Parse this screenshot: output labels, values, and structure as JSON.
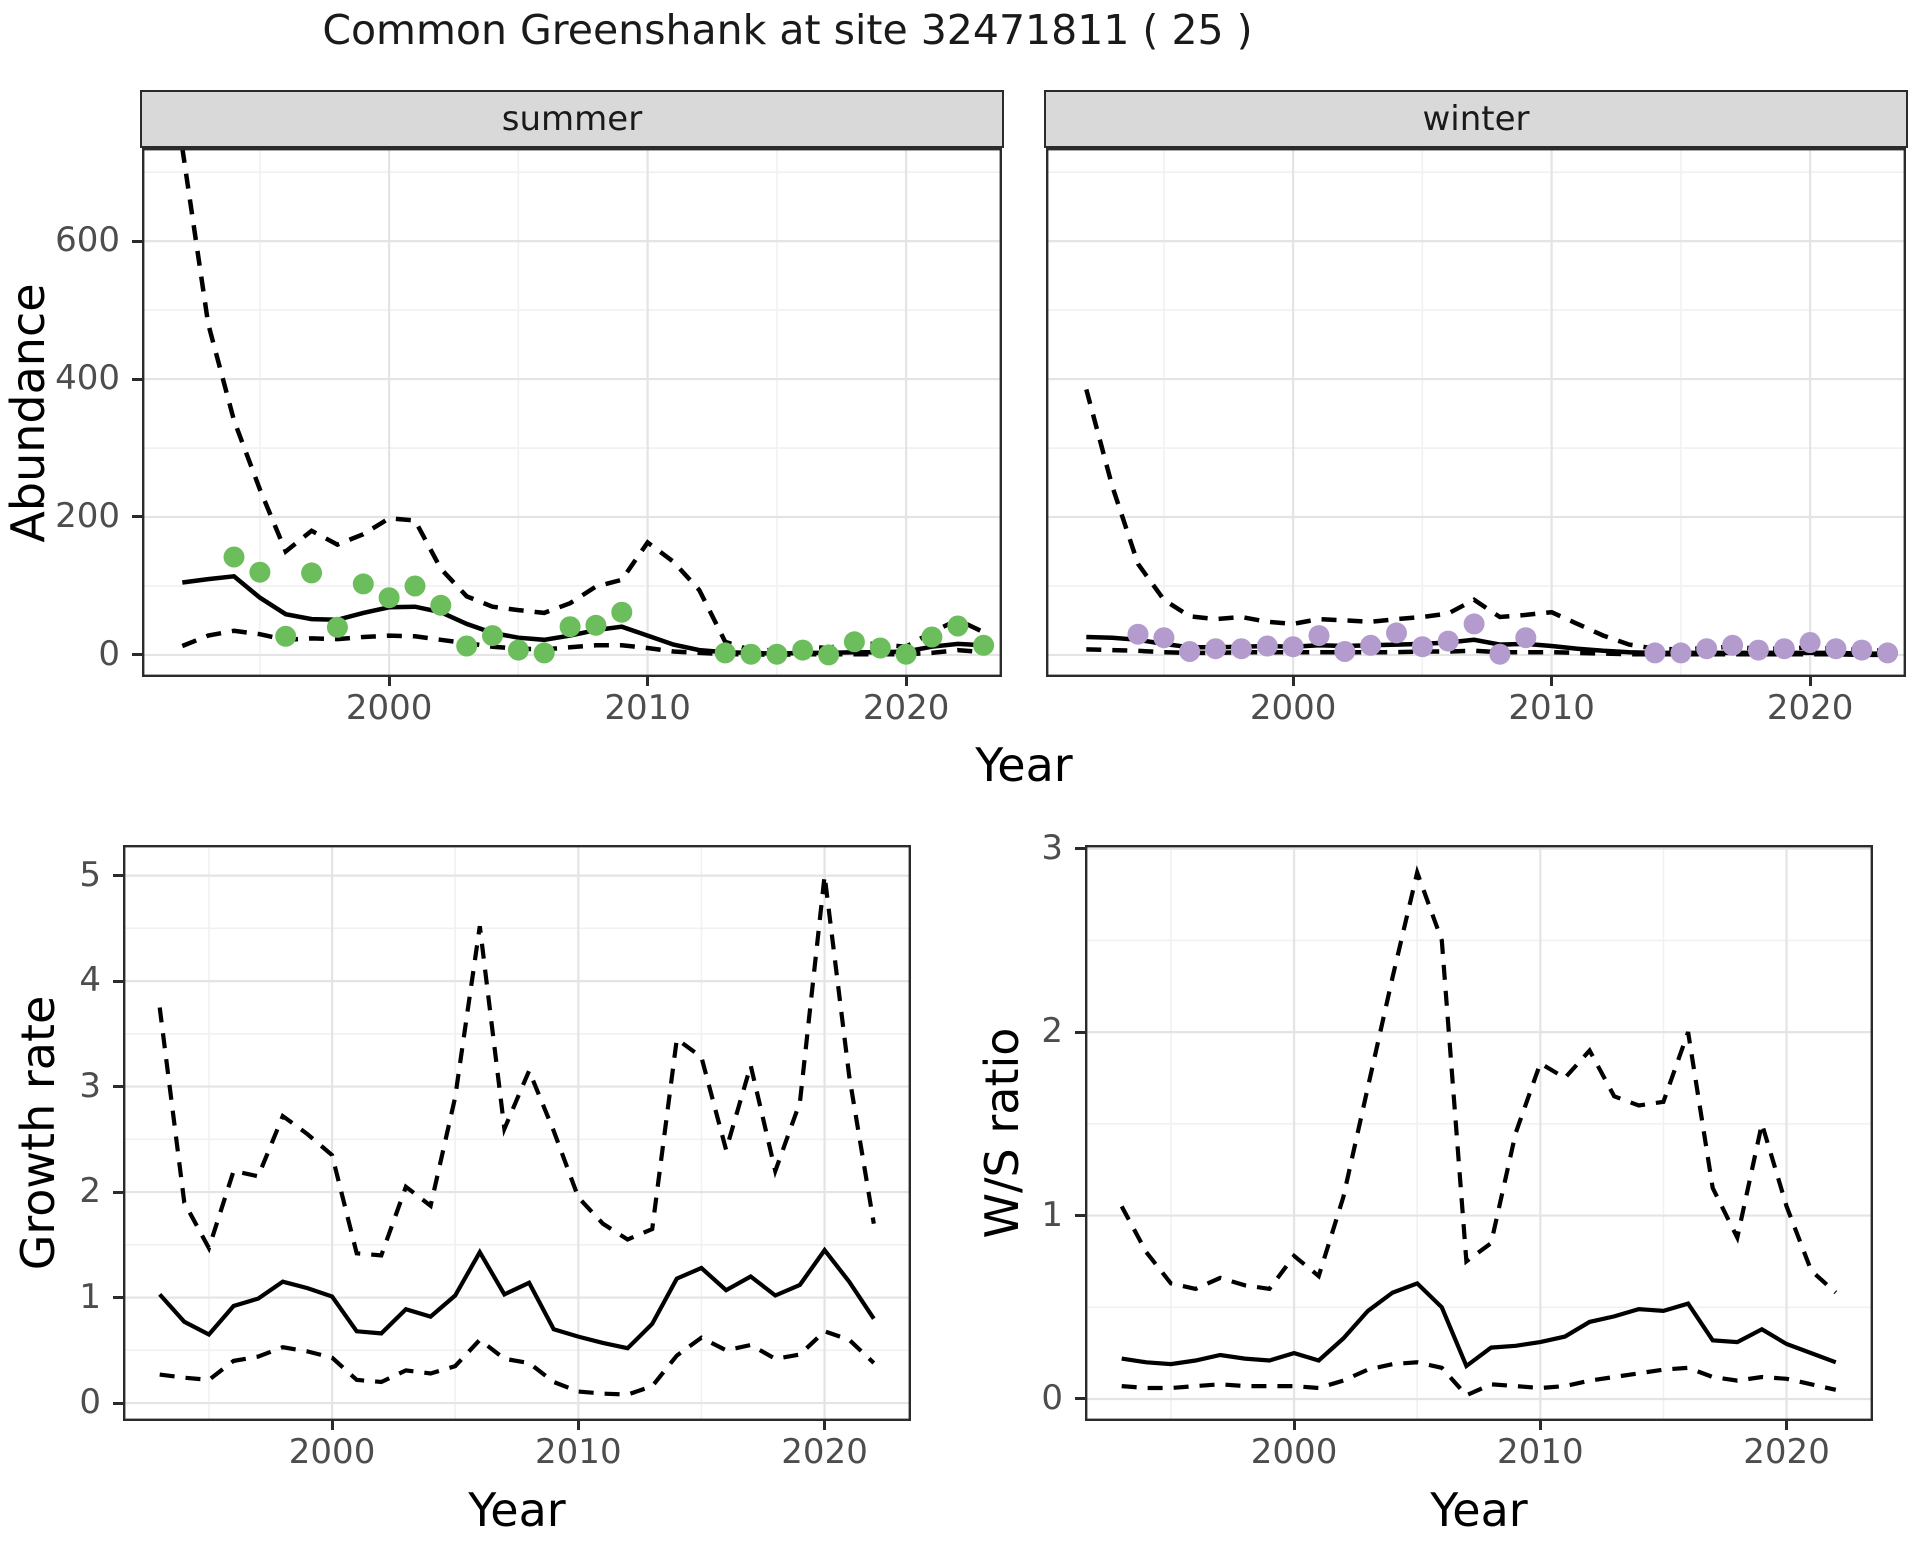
{
  "title": "Common Greenshank at site 32471811 ( 25 )",
  "top_figure": {
    "ylabel": "Abundance",
    "xlabel": "Year",
    "facets": [
      "summer",
      "winter"
    ],
    "strip_bg": "#d9d9d9"
  },
  "bottom_left": {
    "ylabel": "Growth rate",
    "xlabel": "Year"
  },
  "bottom_right": {
    "ylabel": "W/S ratio",
    "xlabel": "Year"
  },
  "colors": {
    "summer_points": "#6cbe5c",
    "winter_points": "#b49bcd",
    "line": "#000000",
    "grid_major": "#e4e4e4",
    "grid_minor": "#f1f1f1"
  },
  "chart_data": [
    {
      "id": "abundance_summer",
      "type": "line",
      "facet_label": "summer",
      "xlabel": "Year",
      "ylabel": "Abundance",
      "xlim": [
        1990.44,
        2023.71
      ],
      "ylim": [
        -32,
        735
      ],
      "xticks": [
        2000,
        2010,
        2020
      ],
      "yticks": [
        0,
        200,
        400,
        600
      ],
      "xminor": [
        1995,
        2005,
        2015
      ],
      "yminor": [
        100,
        300,
        500,
        700
      ],
      "years": [
        1992,
        1993,
        1994,
        1995,
        1996,
        1997,
        1998,
        1999,
        2000,
        2001,
        2002,
        2003,
        2004,
        2005,
        2006,
        2007,
        2008,
        2009,
        2010,
        2011,
        2012,
        2013,
        2014,
        2015,
        2016,
        2017,
        2018,
        2019,
        2020,
        2021,
        2022,
        2023
      ],
      "series": [
        {
          "name": "mean",
          "linetype": "solid",
          "values": [
            105,
            110,
            114,
            83,
            59,
            52,
            51,
            61,
            69,
            70,
            62,
            45,
            32,
            25,
            22,
            28,
            36,
            41,
            28,
            15,
            7,
            4,
            3,
            2,
            3,
            3,
            4,
            4,
            5,
            12,
            16,
            14
          ]
        },
        {
          "name": "upper_ci",
          "linetype": "dashed",
          "values": [
            735,
            480,
            340,
            240,
            150,
            180,
            160,
            175,
            198,
            195,
            125,
            85,
            70,
            65,
            61,
            75,
            99,
            109,
            163,
            135,
            94,
            19,
            7,
            7,
            12,
            10,
            18,
            15,
            12,
            33,
            51,
            33
          ]
        },
        {
          "name": "lower_ci",
          "linetype": "dashed",
          "values": [
            13,
            28,
            35,
            30,
            22,
            24,
            23,
            26,
            28,
            27,
            22,
            17,
            12,
            9,
            8,
            11,
            14,
            14,
            10,
            5,
            3,
            1,
            1,
            0,
            1,
            1,
            1,
            1,
            1,
            3,
            7,
            4
          ]
        }
      ],
      "points": {
        "name": "observed_counts_summer",
        "color": "#6cbe5c",
        "years": [
          1994,
          1995,
          1996,
          1997,
          1998,
          1999,
          2000,
          2001,
          2002,
          2003,
          2004,
          2005,
          2006,
          2007,
          2008,
          2009,
          2013,
          2014,
          2015,
          2016,
          2017,
          2018,
          2019,
          2020,
          2021,
          2022,
          2023
        ],
        "values": [
          142,
          120,
          27,
          119,
          40,
          103,
          83,
          100,
          72,
          13,
          28,
          7,
          3,
          41,
          43,
          62,
          3,
          1,
          1,
          7,
          0,
          19,
          10,
          1,
          26,
          42,
          14
        ]
      }
    },
    {
      "id": "abundance_winter",
      "type": "line",
      "facet_label": "winter",
      "xlabel": "Year",
      "ylabel": "Abundance",
      "xlim": [
        1990.44,
        2023.71
      ],
      "ylim": [
        -32,
        735
      ],
      "xticks": [
        2000,
        2010,
        2020
      ],
      "yticks": [
        0,
        200,
        400,
        600
      ],
      "xminor": [
        1995,
        2005,
        2015
      ],
      "yminor": [
        100,
        300,
        500,
        700
      ],
      "years": [
        1992,
        1993,
        1994,
        1995,
        1996,
        1997,
        1998,
        1999,
        2000,
        2001,
        2002,
        2003,
        2004,
        2005,
        2006,
        2007,
        2008,
        2009,
        2010,
        2011,
        2012,
        2013,
        2014,
        2015,
        2016,
        2017,
        2018,
        2019,
        2020,
        2021,
        2022,
        2023
      ],
      "series": [
        {
          "name": "mean",
          "linetype": "solid",
          "values": [
            26,
            25,
            22,
            16,
            11,
            11,
            12,
            13,
            12,
            14,
            13,
            14,
            15,
            16,
            18,
            22,
            15,
            16,
            13,
            9,
            6,
            4,
            3,
            3,
            3,
            3,
            3,
            3,
            3,
            3,
            2,
            2
          ]
        },
        {
          "name": "upper_ci",
          "linetype": "dashed",
          "values": [
            385,
            245,
            132,
            80,
            56,
            52,
            55,
            48,
            45,
            52,
            50,
            48,
            52,
            55,
            60,
            80,
            55,
            58,
            62,
            45,
            28,
            15,
            9,
            8,
            10,
            12,
            9,
            9,
            11,
            9,
            7,
            6
          ]
        },
        {
          "name": "lower_ci",
          "linetype": "dashed",
          "values": [
            8,
            7,
            6,
            4,
            3,
            3,
            4,
            4,
            4,
            4,
            4,
            4,
            4,
            5,
            5,
            6,
            4,
            4,
            4,
            3,
            2,
            1,
            1,
            1,
            1,
            1,
            1,
            1,
            1,
            1,
            0,
            0
          ]
        }
      ],
      "points": {
        "name": "observed_counts_winter",
        "color": "#b49bcd",
        "years": [
          1994,
          1995,
          1996,
          1997,
          1998,
          1999,
          2000,
          2001,
          2002,
          2003,
          2004,
          2005,
          2006,
          2007,
          2008,
          2009,
          2014,
          2015,
          2016,
          2017,
          2018,
          2019,
          2020,
          2021,
          2022,
          2023
        ],
        "values": [
          30,
          25,
          5,
          9,
          9,
          13,
          12,
          28,
          5,
          14,
          32,
          12,
          20,
          45,
          1,
          25,
          3,
          3,
          9,
          14,
          7,
          9,
          18,
          9,
          7,
          3
        ]
      }
    },
    {
      "id": "growth_rate",
      "type": "line",
      "xlabel": "Year",
      "ylabel": "Growth rate",
      "xlim": [
        1991.51,
        2023.51
      ],
      "ylim": [
        -0.17,
        5.29
      ],
      "xticks": [
        2000,
        2010,
        2020
      ],
      "yticks": [
        0,
        1,
        2,
        3,
        4,
        5
      ],
      "xminor": [
        1995,
        2005,
        2015
      ],
      "yminor": [
        0.5,
        1.5,
        2.5,
        3.5,
        4.5
      ],
      "years": [
        1993,
        1994,
        1995,
        1996,
        1997,
        1998,
        1999,
        2000,
        2001,
        2002,
        2003,
        2004,
        2005,
        2006,
        2007,
        2008,
        2009,
        2010,
        2011,
        2012,
        2013,
        2014,
        2015,
        2016,
        2017,
        2018,
        2019,
        2020,
        2021,
        2022
      ],
      "series": [
        {
          "name": "mean",
          "linetype": "solid",
          "values": [
            1.03,
            0.77,
            0.65,
            0.92,
            0.99,
            1.15,
            1.09,
            1.01,
            0.68,
            0.66,
            0.89,
            0.82,
            1.02,
            1.43,
            1.03,
            1.14,
            0.7,
            0.63,
            0.57,
            0.52,
            0.75,
            1.18,
            1.28,
            1.07,
            1.2,
            1.02,
            1.12,
            1.45,
            1.15,
            0.8
          ]
        },
        {
          "name": "upper_ci",
          "linetype": "dashed",
          "values": [
            3.75,
            1.9,
            1.47,
            2.2,
            2.15,
            2.72,
            2.55,
            2.35,
            1.42,
            1.4,
            2.05,
            1.87,
            2.9,
            4.52,
            2.6,
            3.15,
            2.58,
            1.95,
            1.7,
            1.55,
            1.65,
            3.45,
            3.28,
            2.4,
            3.2,
            2.2,
            2.85,
            5.0,
            3.1,
            1.7
          ]
        },
        {
          "name": "lower_ci",
          "linetype": "dashed",
          "values": [
            0.27,
            0.24,
            0.22,
            0.4,
            0.44,
            0.53,
            0.49,
            0.43,
            0.22,
            0.2,
            0.31,
            0.28,
            0.35,
            0.6,
            0.42,
            0.38,
            0.2,
            0.11,
            0.09,
            0.08,
            0.16,
            0.45,
            0.62,
            0.5,
            0.55,
            0.42,
            0.46,
            0.68,
            0.6,
            0.38
          ]
        }
      ]
    },
    {
      "id": "ws_ratio",
      "type": "line",
      "xlabel": "Year",
      "ylabel": "W/S ratio",
      "xlim": [
        1991.51,
        2023.51
      ],
      "ylim": [
        -0.12,
        3.02
      ],
      "xticks": [
        2000,
        2010,
        2020
      ],
      "yticks": [
        0,
        1,
        2,
        3
      ],
      "xminor": [
        1995,
        2005,
        2015
      ],
      "yminor": [
        0.5,
        1.5,
        2.5
      ],
      "years": [
        1993,
        1994,
        1995,
        1996,
        1997,
        1998,
        1999,
        2000,
        2001,
        2002,
        2003,
        2004,
        2005,
        2006,
        2007,
        2008,
        2009,
        2010,
        2011,
        2012,
        2013,
        2014,
        2015,
        2016,
        2017,
        2018,
        2019,
        2020,
        2021,
        2022
      ],
      "series": [
        {
          "name": "mean",
          "linetype": "solid",
          "values": [
            0.22,
            0.2,
            0.19,
            0.21,
            0.24,
            0.22,
            0.21,
            0.25,
            0.21,
            0.33,
            0.48,
            0.58,
            0.63,
            0.5,
            0.18,
            0.28,
            0.29,
            0.31,
            0.34,
            0.42,
            0.45,
            0.49,
            0.48,
            0.52,
            0.32,
            0.31,
            0.38,
            0.3,
            0.25,
            0.2
          ]
        },
        {
          "name": "upper_ci",
          "linetype": "dashed",
          "values": [
            1.05,
            0.8,
            0.63,
            0.6,
            0.66,
            0.62,
            0.6,
            0.78,
            0.67,
            1.1,
            1.7,
            2.3,
            2.87,
            2.5,
            0.75,
            0.85,
            1.45,
            1.83,
            1.75,
            1.9,
            1.65,
            1.6,
            1.62,
            2.0,
            1.15,
            0.88,
            1.5,
            1.05,
            0.7,
            0.58
          ]
        },
        {
          "name": "lower_ci",
          "linetype": "dashed",
          "values": [
            0.07,
            0.06,
            0.06,
            0.07,
            0.08,
            0.07,
            0.07,
            0.07,
            0.06,
            0.1,
            0.16,
            0.19,
            0.2,
            0.17,
            0.02,
            0.08,
            0.07,
            0.06,
            0.07,
            0.1,
            0.12,
            0.14,
            0.16,
            0.17,
            0.12,
            0.1,
            0.12,
            0.11,
            0.08,
            0.05
          ]
        }
      ]
    }
  ]
}
